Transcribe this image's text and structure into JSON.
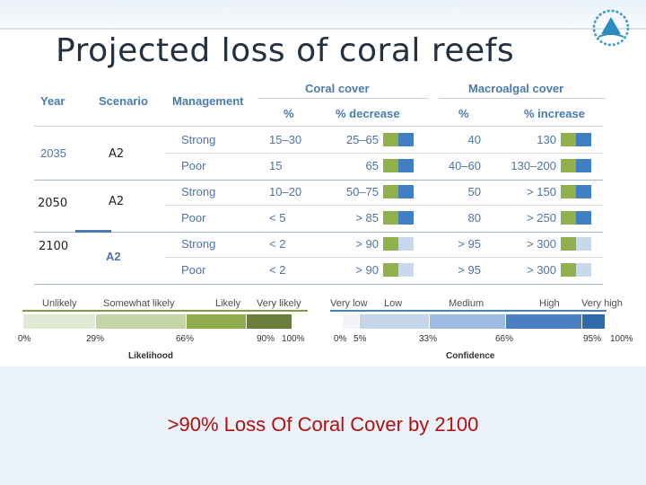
{
  "slide": {
    "title": "Projected loss of coral reefs",
    "headline": ">90% Loss Of Coral Cover by 2100"
  },
  "table": {
    "headers": {
      "year": "Year",
      "scenario": "Scenario",
      "management": "Management",
      "coral_cover": "Coral cover",
      "macroalgal_cover": "Macroalgal cover",
      "coral_pct": "%",
      "coral_decrease": "% decrease",
      "macro_pct": "%",
      "macro_increase": "% increase"
    },
    "rows": [
      {
        "management": "Strong",
        "coral_pct": "15–30",
        "decrease": "25–65",
        "macro_pct": "40",
        "increase": "130"
      },
      {
        "management": "Poor",
        "coral_pct": "15",
        "decrease": "65",
        "macro_pct": "40–60",
        "increase": "130–200"
      },
      {
        "management": "Strong",
        "coral_pct": "10–20",
        "decrease": "50–75",
        "macro_pct": "50",
        "increase": "> 150"
      },
      {
        "management": "Poor",
        "coral_pct": "< 5",
        "decrease": "> 85",
        "macro_pct": "80",
        "increase": "> 250"
      },
      {
        "management": "Strong",
        "coral_pct": "< 2",
        "decrease": "> 90",
        "macro_pct": "> 95",
        "increase": "> 300"
      },
      {
        "management": "Poor",
        "coral_pct": "< 2",
        "decrease": "> 90",
        "macro_pct": "> 95",
        "increase": "> 300"
      }
    ],
    "year_2035": "2035",
    "scenario_2100": "A2"
  },
  "overlay": {
    "scenario_1": "A2",
    "year_2": "2050",
    "scenario_2": "A2",
    "year_3": "2100"
  },
  "likelihood_scale": {
    "labels": [
      "Unlikely",
      "Somewhat likely",
      "Likely",
      "Very likely"
    ],
    "ticks": [
      "0%",
      "29%",
      "66%",
      "90%",
      "100%"
    ],
    "caption": "Likelihood"
  },
  "confidence_scale": {
    "labels": [
      "Very low",
      "Low",
      "Medium",
      "High",
      "Very high"
    ],
    "ticks": [
      "0%",
      "5%",
      "33%",
      "66%",
      "95%",
      "100%"
    ],
    "caption": "Confidence"
  },
  "colors": {
    "likelihood": [
      "#e2ead6",
      "#c5d6a6",
      "#8fab4c",
      "#6c7e3b"
    ],
    "confidence": [
      "#f2f4f7",
      "#c5d6ea",
      "#9cbde0",
      "#4a80c0",
      "#2e6aa8"
    ],
    "header_blue": "#4a7ab0",
    "headline_red": "#b01010"
  }
}
